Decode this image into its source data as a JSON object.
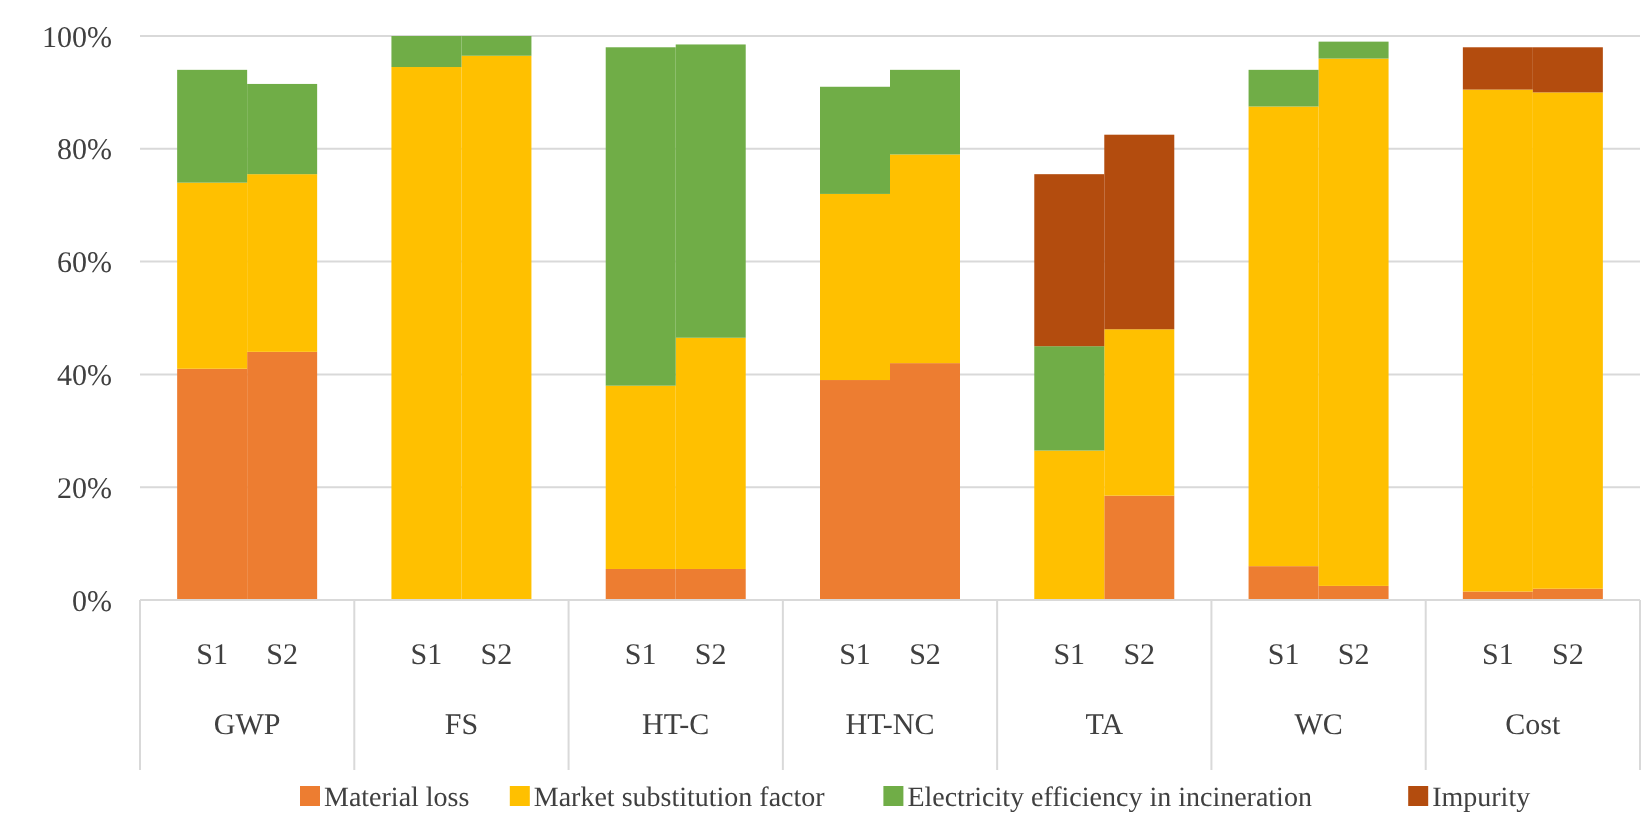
{
  "chart_data": {
    "type": "bar",
    "stacked": true,
    "categories": [
      "S1",
      "S2",
      "S1",
      "S2",
      "S1",
      "S2",
      "S1",
      "S2",
      "S1",
      "S2",
      "S1",
      "S2",
      "S1",
      "S2"
    ],
    "annotations": [
      "GWP",
      "FS",
      "HT-C",
      "HT-NC",
      "TA",
      "WC",
      "Cost"
    ],
    "series": [
      {
        "name": "Material loss",
        "color": "#ed7d31",
        "values": [
          41,
          44,
          0,
          0,
          5.5,
          5.5,
          39,
          42,
          0,
          18.5,
          6,
          2.5,
          1.5,
          2
        ]
      },
      {
        "name": "Market substitution factor",
        "color": "#ffc000",
        "values": [
          33,
          31.5,
          94.5,
          96.5,
          32.5,
          41,
          33,
          37,
          26.5,
          29.5,
          81.5,
          93.5,
          89,
          88
        ]
      },
      {
        "name": "Electricity efficiency in incineration",
        "color": "#70ad47",
        "values": [
          20,
          16,
          5.5,
          3.5,
          60,
          52,
          19,
          15,
          18.5,
          0,
          6.5,
          3,
          0,
          0
        ]
      },
      {
        "name": "Impurity",
        "color": "#b34c0e",
        "values": [
          0,
          0,
          0,
          0,
          0,
          0,
          0,
          0,
          30.5,
          34.5,
          0,
          0,
          7.5,
          8
        ]
      }
    ],
    "ylim": [
      0,
      100
    ],
    "yticks": [
      {
        "value": 0,
        "label": "0%"
      },
      {
        "value": 20,
        "label": "20%"
      },
      {
        "value": 40,
        "label": "40%"
      },
      {
        "value": 60,
        "label": "60%"
      },
      {
        "value": 80,
        "label": "80%"
      },
      {
        "value": 100,
        "label": "100%"
      }
    ],
    "grid": "y",
    "legend": "bottom"
  }
}
